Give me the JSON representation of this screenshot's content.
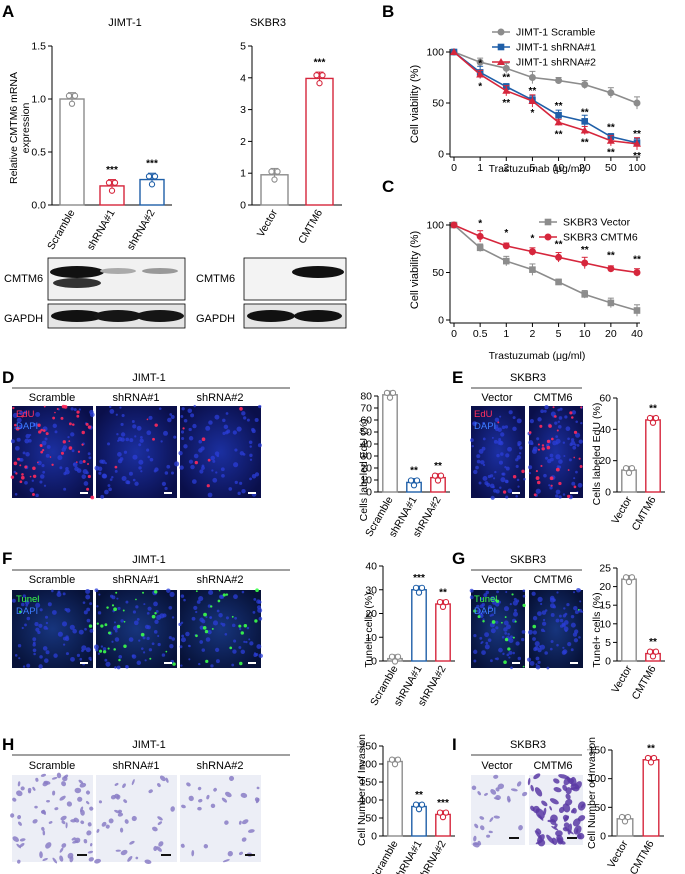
{
  "panels": {
    "A": "A",
    "B": "B",
    "C": "C",
    "D": "D",
    "E": "E",
    "F": "F",
    "G": "G",
    "H": "H",
    "I": "I"
  },
  "colors": {
    "gray": "#8c8c8c",
    "red": "#d6263c",
    "blue": "#1f5fa8",
    "black": "#111111"
  },
  "A": {
    "left_title": "JIMT-1",
    "right_title": "SKBR3",
    "ylabel_line1": "Relative CMTM6 mRNA",
    "ylabel_line2": "expression",
    "left_ticks": [
      "0.0",
      "0.5",
      "1.0",
      "1.5"
    ],
    "right_ticks": [
      "0",
      "1",
      "2",
      "3",
      "4",
      "5"
    ],
    "left_categories": [
      "Scramble",
      "shRNA#1",
      "shRNA#2"
    ],
    "right_categories": [
      "Vector",
      "CMTM6"
    ],
    "left_stars": [
      "***",
      "***"
    ],
    "right_stars": [
      "***"
    ],
    "blot_labels": [
      "CMTM6",
      "GAPDH"
    ]
  },
  "B": {
    "ylabel": "Cell viability (%)",
    "xlabel": "Trastuzumab (μg/ml)",
    "xticks": [
      "0",
      "1",
      "2",
      "5",
      "10",
      "20",
      "50",
      "100"
    ],
    "yticks": [
      "0",
      "50",
      "100"
    ],
    "legend": [
      "JIMT-1 Scramble",
      "JIMT-1 shRNA#1",
      "JIMT-1 shRNA#2"
    ],
    "stars_upper": [
      "*",
      "**",
      "**",
      "**",
      "**",
      "**",
      "**"
    ],
    "stars_lower": [
      "*",
      "**",
      "*",
      "**",
      "**",
      "**",
      "**"
    ]
  },
  "C": {
    "ylabel": "Cell viability (%)",
    "xlabel": "Trastuzumab (μg/ml)",
    "xticks": [
      "0",
      "0.5",
      "1",
      "2",
      "5",
      "10",
      "20",
      "40"
    ],
    "yticks": [
      "0",
      "50",
      "100"
    ],
    "legend": [
      "SKBR3 Vector",
      "SKBR3 CMTM6"
    ],
    "stars": [
      "*",
      "*",
      "*",
      "**",
      "**",
      "**",
      "**"
    ]
  },
  "D": {
    "title": "JIMT-1",
    "columns": [
      "Scramble",
      "shRNA#1",
      "shRNA#2"
    ],
    "stain1": "EdU",
    "stain2": "DAPI",
    "ylabel": "Cells labeled EdU (%)",
    "yticks": [
      "0",
      "10",
      "20",
      "30",
      "40",
      "50",
      "60",
      "70",
      "80"
    ],
    "categories": [
      "Scramble",
      "shRNA#1",
      "shRNA#2"
    ],
    "stars": [
      "**",
      "**"
    ]
  },
  "E": {
    "title": "SKBR3",
    "columns": [
      "Vector",
      "CMTM6"
    ],
    "stain1": "EdU",
    "stain2": "DAPI",
    "ylabel": "Cells labeled EdU (%)",
    "yticks": [
      "0",
      "20",
      "40",
      "60"
    ],
    "categories": [
      "Vector",
      "CMTM6"
    ],
    "stars": [
      "**"
    ]
  },
  "F": {
    "title": "JIMT-1",
    "columns": [
      "Scramble",
      "shRNA#1",
      "shRNA#2"
    ],
    "stain1": "Tunel",
    "stain2": "DAPI",
    "ylabel": "Tunel+ cells (%)",
    "yticks": [
      "0",
      "10",
      "20",
      "30",
      "40"
    ],
    "categories": [
      "Scramble",
      "shRNA#1",
      "shRNA#2"
    ],
    "stars": [
      "***",
      "**"
    ]
  },
  "G": {
    "title": "SKBR3",
    "columns": [
      "Vector",
      "CMTM6"
    ],
    "stain1": "Tunel",
    "stain2": "DAPI",
    "ylabel": "Tunel+ cells (%)",
    "yticks": [
      "0",
      "5",
      "10",
      "15",
      "20",
      "25"
    ],
    "categories": [
      "Vector",
      "CMTM6"
    ],
    "stars": [
      "**"
    ]
  },
  "H": {
    "title": "JIMT-1",
    "columns": [
      "Scramble",
      "shRNA#1",
      "shRNA#2"
    ],
    "ylabel": "Cell Number of Invasion",
    "yticks": [
      "0",
      "50",
      "100",
      "150",
      "200",
      "250"
    ],
    "categories": [
      "Scramble",
      "shRNA#1",
      "shRNA#2"
    ],
    "stars": [
      "**",
      "***"
    ]
  },
  "I": {
    "title": "SKBR3",
    "columns": [
      "Vector",
      "CMTM6"
    ],
    "ylabel": "Cell Number of Invasion",
    "yticks": [
      "0",
      "50",
      "100",
      "150"
    ],
    "categories": [
      "Vector",
      "CMTM6"
    ],
    "stars": [
      "**"
    ]
  },
  "chart_data": [
    {
      "id": "A-left",
      "type": "bar",
      "categories": [
        "Scramble",
        "shRNA#1",
        "shRNA#2"
      ],
      "values": [
        1.0,
        0.18,
        0.24
      ],
      "ylabel": "Relative CMTM6 mRNA expression",
      "ylim": [
        0,
        1.5
      ],
      "colors": [
        "gray",
        "red",
        "blue"
      ]
    },
    {
      "id": "A-right",
      "type": "bar",
      "categories": [
        "Vector",
        "CMTM6"
      ],
      "values": [
        0.95,
        3.98
      ],
      "ylabel": "Relative CMTM6 mRNA expression",
      "ylim": [
        0,
        5
      ],
      "colors": [
        "gray",
        "red"
      ]
    },
    {
      "id": "B",
      "type": "line",
      "x": [
        "0",
        "1",
        "2",
        "5",
        "10",
        "20",
        "50",
        "100"
      ],
      "ylabel": "Cell viability (%)",
      "xlabel": "Trastuzumab (μg/ml)",
      "ylim": [
        0,
        100
      ],
      "series": [
        {
          "name": "JIMT-1 Scramble",
          "values": [
            100,
            90,
            84,
            75,
            72,
            68,
            60,
            50
          ],
          "color": "gray"
        },
        {
          "name": "JIMT-1 shRNA#1",
          "values": [
            100,
            80,
            66,
            53,
            38,
            32,
            17,
            11
          ],
          "color": "blue"
        },
        {
          "name": "JIMT-1 shRNA#2",
          "values": [
            100,
            78,
            62,
            52,
            31,
            23,
            13,
            10
          ],
          "color": "red"
        }
      ]
    },
    {
      "id": "C",
      "type": "line",
      "x": [
        "0",
        "0.5",
        "1",
        "2",
        "5",
        "10",
        "20",
        "40"
      ],
      "ylabel": "Cell viability (%)",
      "xlabel": "Trastuzumab (μg/ml)",
      "ylim": [
        0,
        100
      ],
      "series": [
        {
          "name": "SKBR3 Vector",
          "values": [
            100,
            76,
            62,
            53,
            40,
            27,
            18,
            10
          ],
          "color": "gray"
        },
        {
          "name": "SKBR3 CMTM6",
          "values": [
            100,
            88,
            78,
            72,
            66,
            60,
            54,
            50
          ],
          "color": "red"
        }
      ]
    },
    {
      "id": "D",
      "type": "bar",
      "categories": [
        "Scramble",
        "shRNA#1",
        "shRNA#2"
      ],
      "values": [
        81,
        8,
        12
      ],
      "ylabel": "Cells labeled EdU (%)",
      "ylim": [
        0,
        80
      ],
      "colors": [
        "gray",
        "blue",
        "red"
      ]
    },
    {
      "id": "E",
      "type": "bar",
      "categories": [
        "Vector",
        "CMTM6"
      ],
      "values": [
        14,
        46
      ],
      "ylabel": "Cells labeled EdU (%)",
      "ylim": [
        0,
        60
      ],
      "colors": [
        "gray",
        "red"
      ]
    },
    {
      "id": "F",
      "type": "bar",
      "categories": [
        "Scramble",
        "shRNA#1",
        "shRNA#2"
      ],
      "values": [
        1,
        30,
        24
      ],
      "ylabel": "Tunel+ cells (%)",
      "ylim": [
        0,
        40
      ],
      "colors": [
        "gray",
        "blue",
        "red"
      ]
    },
    {
      "id": "G",
      "type": "bar",
      "categories": [
        "Vector",
        "CMTM6"
      ],
      "values": [
        22,
        2
      ],
      "ylabel": "Tunel+ cells (%)",
      "ylim": [
        0,
        25
      ],
      "colors": [
        "gray",
        "red"
      ]
    },
    {
      "id": "H",
      "type": "bar",
      "categories": [
        "Scramble",
        "shRNA#1",
        "shRNA#2"
      ],
      "values": [
        207,
        82,
        60
      ],
      "ylabel": "Cell Number of Invasion",
      "ylim": [
        0,
        250
      ],
      "colors": [
        "gray",
        "blue",
        "red"
      ]
    },
    {
      "id": "I",
      "type": "bar",
      "categories": [
        "Vector",
        "CMTM6"
      ],
      "values": [
        30,
        133
      ],
      "ylabel": "Cell Number of Invasion",
      "ylim": [
        0,
        150
      ],
      "colors": [
        "gray",
        "red"
      ]
    }
  ]
}
